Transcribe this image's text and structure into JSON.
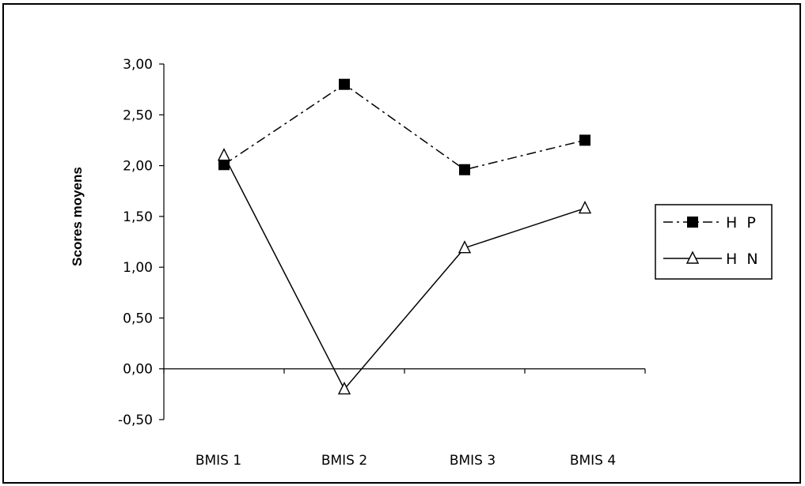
{
  "chart_data": {
    "type": "line",
    "categories": [
      "BMIS 1",
      "BMIS 2",
      "BMIS 3",
      "BMIS 4"
    ],
    "series": [
      {
        "name": "H P",
        "values": [
          2.01,
          2.8,
          1.96,
          2.25
        ],
        "marker": "filled-square",
        "line": "dash-dot"
      },
      {
        "name": "H N",
        "values": [
          2.1,
          -0.2,
          1.19,
          1.58
        ],
        "marker": "open-triangle",
        "line": "solid"
      }
    ],
    "xlabel": "",
    "ylabel": "Scores moyens",
    "ylim": [
      -0.5,
      3.0
    ],
    "yticks": [
      "3,00",
      "2,50",
      "2,00",
      "1,50",
      "1,00",
      "0,50",
      "0,00",
      "-0,50"
    ],
    "grid": false,
    "legend": "right"
  }
}
